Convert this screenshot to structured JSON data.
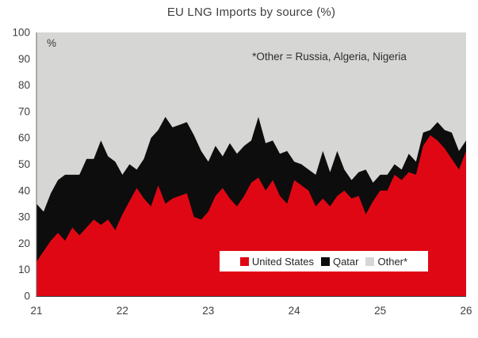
{
  "chart_data": {
    "type": "area",
    "stacked": true,
    "title": "EU LNG Imports by source (%)",
    "annotation": "*Other = Russia, Algeria, Nigeria",
    "y_unit_label": "%",
    "x_frequency": "monthly",
    "x_tick_labels": [
      "21",
      "22",
      "23",
      "24",
      "25",
      "26"
    ],
    "x_tick_positions": [
      0,
      12,
      24,
      36,
      48,
      60
    ],
    "ylim": [
      0,
      100
    ],
    "y_ticks": [
      0,
      10,
      20,
      30,
      40,
      50,
      60,
      70,
      80,
      90,
      100
    ],
    "grid": false,
    "legend_position": "inside-bottom-right",
    "series": [
      {
        "name": "United States",
        "color": "#e00714",
        "values": [
          13,
          17,
          21,
          24,
          21,
          26,
          23,
          26,
          29,
          27,
          29,
          25,
          31,
          36,
          41,
          37,
          34,
          42,
          35,
          37,
          38,
          39,
          30,
          29,
          32,
          38,
          41,
          37,
          34,
          38,
          43,
          45,
          40,
          44,
          38,
          35,
          44,
          42,
          40,
          34,
          37,
          34,
          38,
          40,
          37,
          38,
          31,
          36,
          40,
          40,
          46,
          44,
          47,
          46,
          57,
          61,
          59,
          56,
          52,
          48,
          55
        ]
      },
      {
        "name": "Qatar",
        "color": "#0d0d0d",
        "values": [
          22,
          15,
          18,
          20,
          25,
          20,
          23,
          26,
          23,
          32,
          24,
          26,
          15,
          14,
          7,
          15,
          26,
          21,
          33,
          27,
          27,
          27,
          31,
          26,
          19,
          19,
          12,
          21,
          20,
          19,
          16,
          23,
          18,
          15,
          16,
          20,
          7,
          8,
          8,
          12,
          18,
          13,
          17,
          8,
          7,
          9,
          17,
          7,
          6,
          6,
          4,
          4,
          7,
          5,
          5,
          2,
          7,
          7,
          10,
          7,
          4
        ]
      },
      {
        "name": "Other*",
        "color": "#d6d6d4",
        "values": [
          65,
          68,
          61,
          56,
          54,
          54,
          54,
          48,
          48,
          41,
          47,
          49,
          54,
          50,
          52,
          48,
          40,
          37,
          32,
          36,
          35,
          34,
          39,
          45,
          49,
          43,
          47,
          42,
          46,
          43,
          41,
          32,
          42,
          41,
          46,
          45,
          49,
          50,
          52,
          54,
          45,
          53,
          45,
          52,
          56,
          53,
          52,
          57,
          54,
          54,
          50,
          52,
          46,
          49,
          38,
          37,
          34,
          37,
          38,
          45,
          41
        ]
      }
    ],
    "axis_color": "#6e6e6e",
    "tick_label_color": "#3f3f3f"
  }
}
